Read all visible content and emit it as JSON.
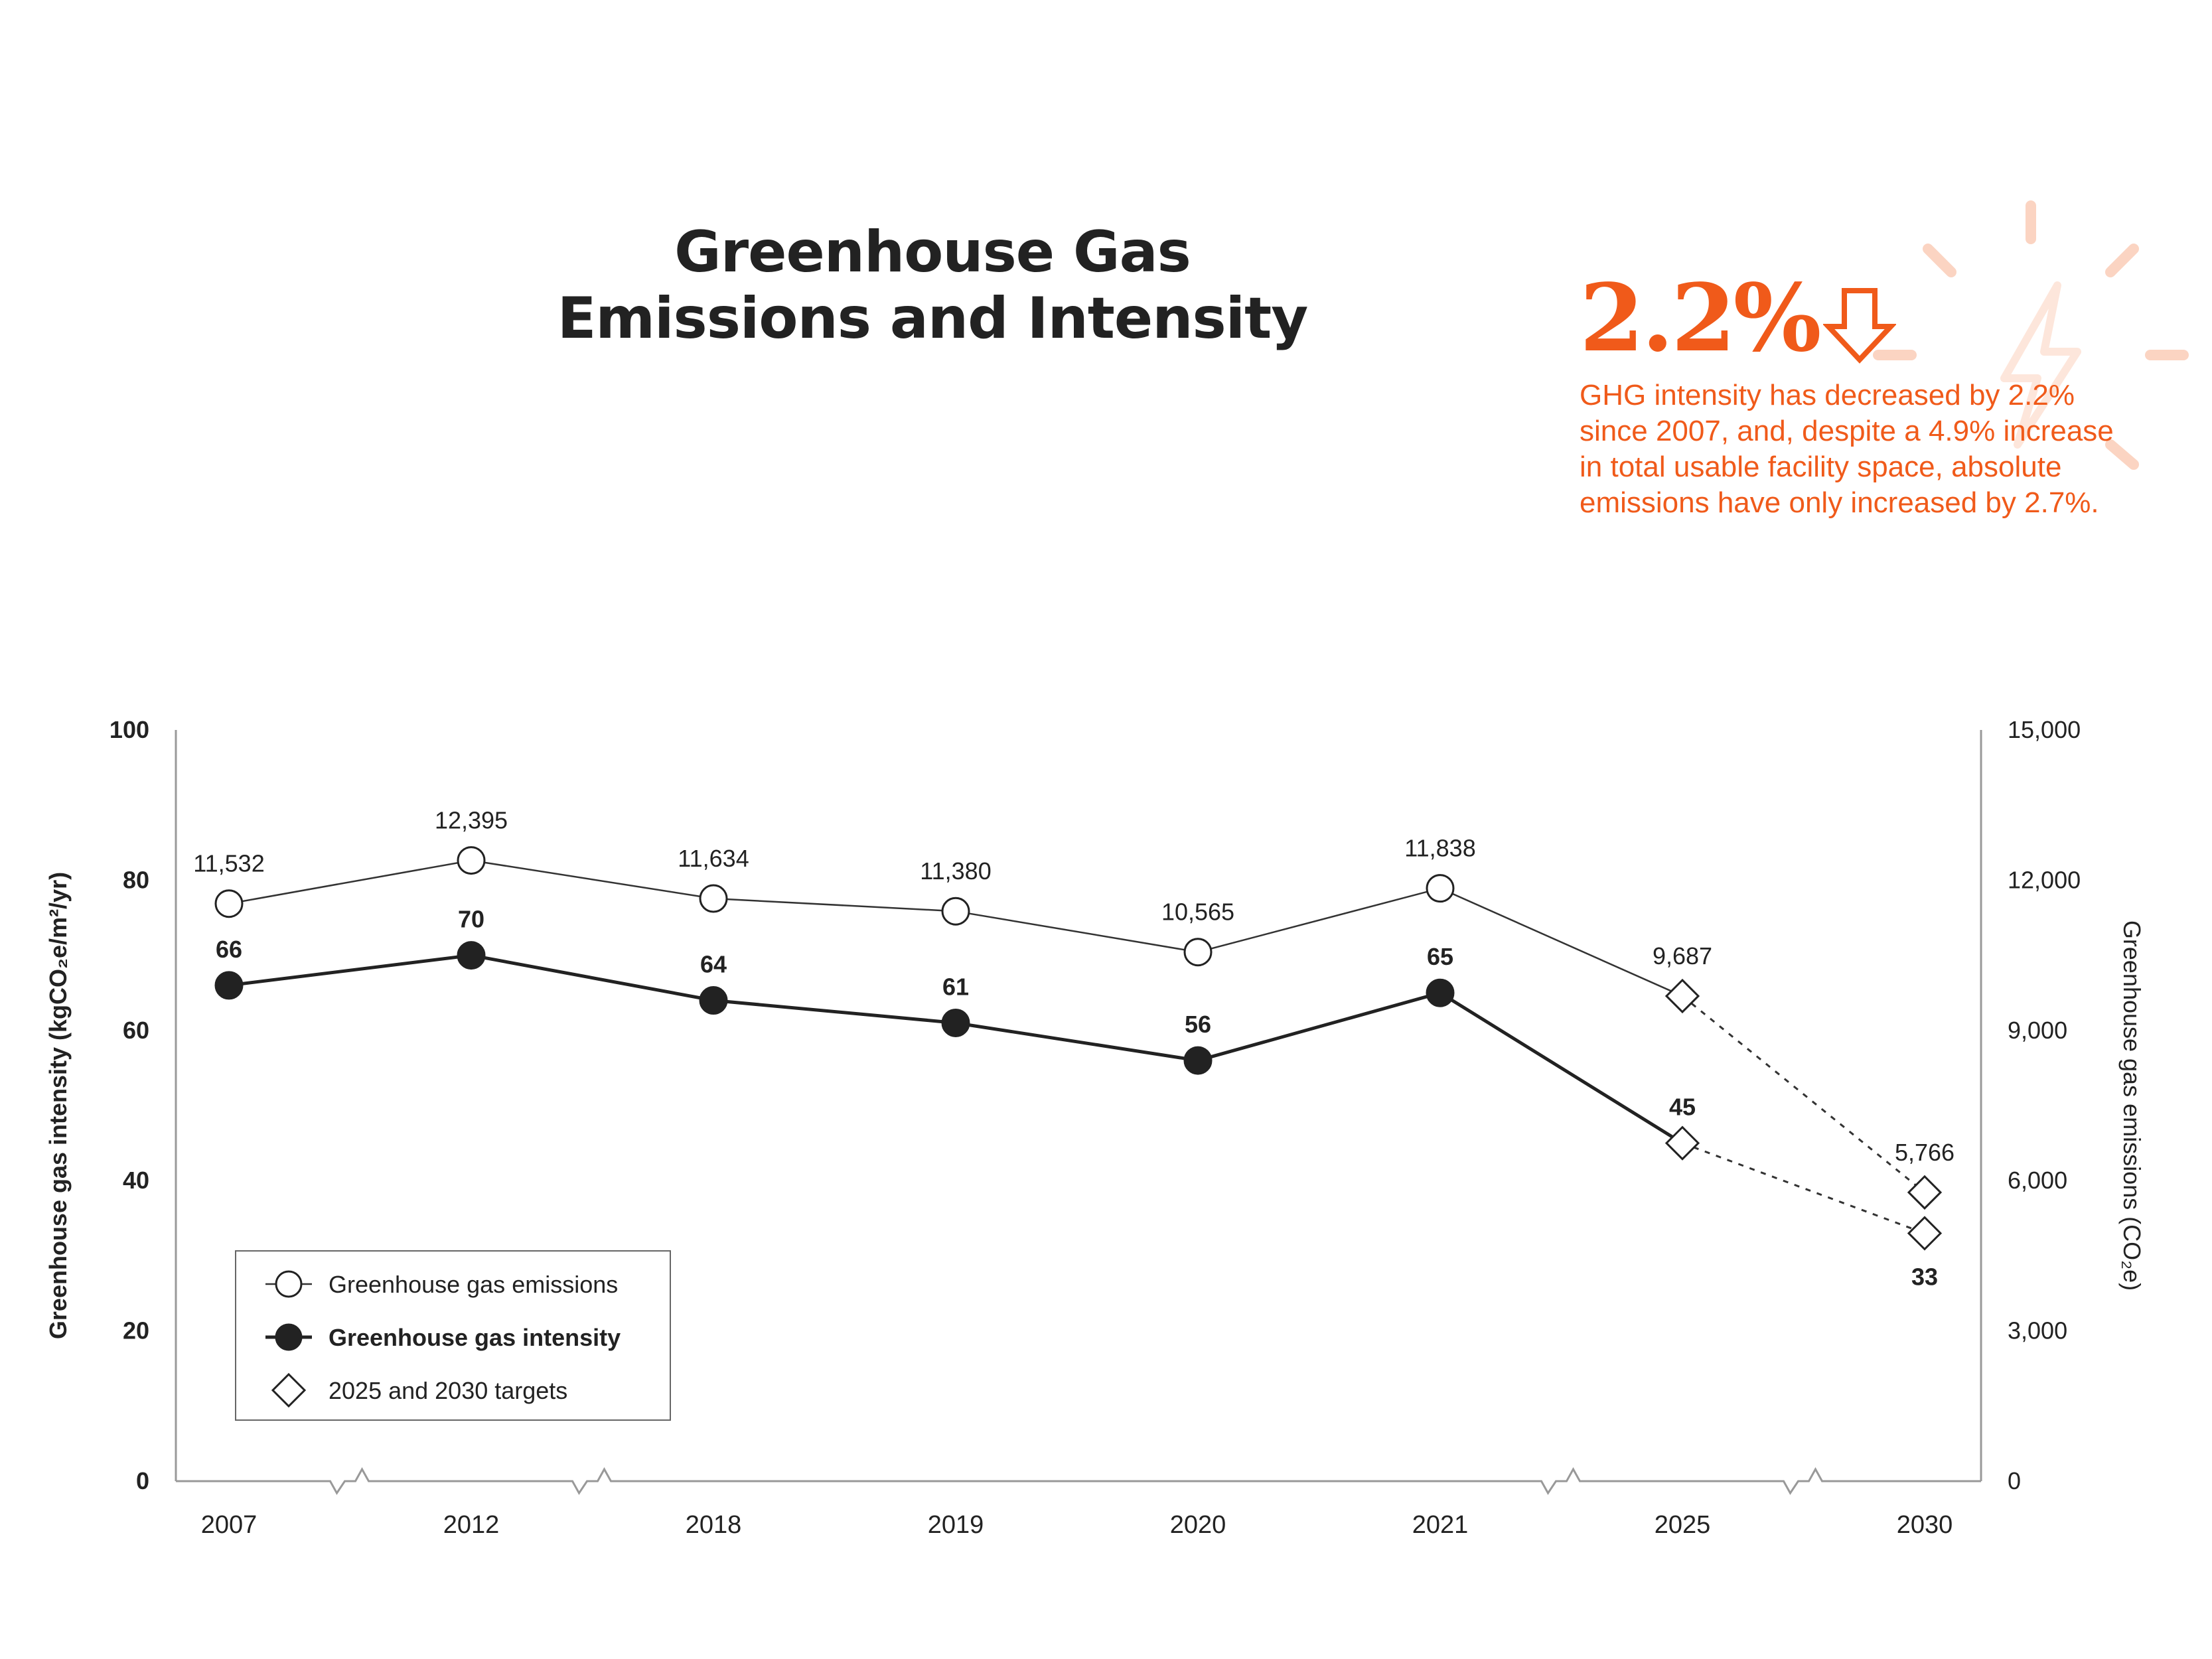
{
  "title": {
    "line1": "Greenhouse Gas",
    "line2": "Emissions and Intensity"
  },
  "callout": {
    "value": "2.2%",
    "text": "GHG intensity has decreased by 2.2% since 2007, and, despite a 4.9% increase in total usable facility space, absolute emissions have only increased by 2.7%.",
    "accent_color": "#f05a1a",
    "icons": [
      "down-arrow-icon",
      "sun-icon"
    ]
  },
  "chart_data": {
    "type": "line",
    "categories": [
      "2007",
      "2012",
      "2018",
      "2019",
      "2020",
      "2021",
      "2025",
      "2030"
    ],
    "axis_breaks_between": [
      [
        "2007",
        "2012"
      ],
      [
        "2012",
        "2018"
      ],
      [
        "2021",
        "2025"
      ],
      [
        "2025",
        "2030"
      ]
    ],
    "series": [
      {
        "name": "Greenhouse gas emissions",
        "axis": "right",
        "values": [
          11532,
          12395,
          11634,
          11380,
          10565,
          11838,
          9687,
          5766
        ],
        "labels": [
          "11,532",
          "12,395",
          "11,634",
          "11,380",
          "10,565",
          "11,838",
          "9,687",
          "5,766"
        ],
        "marker": "open-circle",
        "color": "#222222"
      },
      {
        "name": "Greenhouse gas intensity",
        "axis": "left",
        "values": [
          66,
          70,
          64,
          61,
          56,
          65,
          45,
          33
        ],
        "labels": [
          "66",
          "70",
          "64",
          "61",
          "56",
          "65",
          "45",
          "33"
        ],
        "marker": "filled-circle",
        "color": "#222222"
      }
    ],
    "targets": {
      "name": "2025 and 2030 targets",
      "categories": [
        "2025",
        "2030"
      ],
      "marker": "open-diamond",
      "line_style": "dotted"
    },
    "ylabel_left": "Greenhouse gas intensity (kgCO₂e/m²/yr)",
    "ylim_left": [
      0,
      100
    ],
    "yticks_left": [
      "0",
      "20",
      "40",
      "60",
      "80",
      "100"
    ],
    "ylabel_right": "Greenhouse gas emissions (CO₂e)",
    "ylim_right": [
      0,
      15000
    ],
    "yticks_right": [
      "0",
      "3,000",
      "6,000",
      "9,000",
      "12,000",
      "15,000"
    ],
    "legend": [
      {
        "label": "Greenhouse gas emissions",
        "marker": "open-circle"
      },
      {
        "label": "Greenhouse gas intensity",
        "marker": "filled-circle"
      },
      {
        "label": "2025 and 2030 targets",
        "marker": "open-diamond"
      }
    ],
    "legend_position": "bottom-left",
    "grid": false
  }
}
